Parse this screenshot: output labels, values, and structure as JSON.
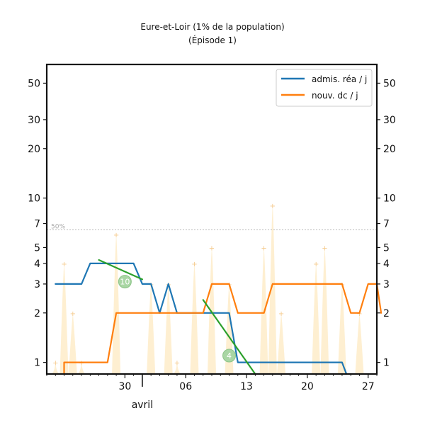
{
  "chart_data": {
    "type": "line",
    "title": "Eure-et-Loir (1% de la population)",
    "subtitle": "(Épisode 1)",
    "xlabel": "",
    "ylabel": "",
    "yscale": "log",
    "ylim": [
      0.85,
      65
    ],
    "xlim": [
      "2020-03-21",
      "2020-04-28"
    ],
    "grid": false,
    "legend_position": "top-right",
    "x_ticks": [
      {
        "date": "2020-03-30",
        "label": "30"
      },
      {
        "date": "2020-04-06",
        "label": "06"
      },
      {
        "date": "2020-04-13",
        "label": "13"
      },
      {
        "date": "2020-04-20",
        "label": "20"
      },
      {
        "date": "2020-04-27",
        "label": "27"
      }
    ],
    "x_month_label": {
      "date": "2020-04-01",
      "label": "avril"
    },
    "y_ticks": [
      {
        "value": 1,
        "label": "1"
      },
      {
        "value": 2,
        "label": "2"
      },
      {
        "value": 3,
        "label": "3"
      },
      {
        "value": 4,
        "label": "4"
      },
      {
        "value": 5,
        "label": "5"
      },
      {
        "value": 7,
        "label": "7"
      },
      {
        "value": 10,
        "label": "10"
      },
      {
        "value": 20,
        "label": "20"
      },
      {
        "value": 30,
        "label": "30"
      },
      {
        "value": 50,
        "label": "50"
      }
    ],
    "reference_line": {
      "value": 6.4,
      "label": "50%",
      "color": "#b0b0b0"
    },
    "series": [
      {
        "name": "admis. réa / j",
        "color": "#1f77b4",
        "points": [
          [
            "2020-03-22",
            3
          ],
          [
            "2020-03-23",
            3
          ],
          [
            "2020-03-24",
            3
          ],
          [
            "2020-03-25",
            3
          ],
          [
            "2020-03-26",
            4
          ],
          [
            "2020-03-27",
            4
          ],
          [
            "2020-03-28",
            4
          ],
          [
            "2020-03-29",
            4
          ],
          [
            "2020-03-30",
            4
          ],
          [
            "2020-03-31",
            4
          ],
          [
            "2020-04-01",
            3
          ],
          [
            "2020-04-02",
            3
          ],
          [
            "2020-04-03",
            2
          ],
          [
            "2020-04-04",
            3
          ],
          [
            "2020-04-05",
            2
          ],
          [
            "2020-04-06",
            2
          ],
          [
            "2020-04-07",
            2
          ],
          [
            "2020-04-08",
            2
          ],
          [
            "2020-04-09",
            2
          ],
          [
            "2020-04-10",
            2
          ],
          [
            "2020-04-11",
            2
          ],
          [
            "2020-04-12",
            1
          ],
          [
            "2020-04-13",
            1
          ],
          [
            "2020-04-14",
            1
          ],
          [
            "2020-04-15",
            1
          ],
          [
            "2020-04-16",
            1
          ],
          [
            "2020-04-17",
            1
          ],
          [
            "2020-04-18",
            1
          ],
          [
            "2020-04-19",
            1
          ],
          [
            "2020-04-20",
            1
          ],
          [
            "2020-04-21",
            1
          ],
          [
            "2020-04-22",
            1
          ],
          [
            "2020-04-23",
            1
          ],
          [
            "2020-04-24",
            1
          ],
          [
            "2020-04-24.5",
            0.85
          ]
        ]
      },
      {
        "name": "nouv. dc / j",
        "color": "#ff7f0e",
        "points": [
          [
            "2020-03-23",
            0.85
          ],
          [
            "2020-03-23",
            1
          ],
          [
            "2020-03-24",
            1
          ],
          [
            "2020-03-25",
            1
          ],
          [
            "2020-03-26",
            1
          ],
          [
            "2020-03-27",
            1
          ],
          [
            "2020-03-28",
            1
          ],
          [
            "2020-03-29",
            2
          ],
          [
            "2020-03-30",
            2
          ],
          [
            "2020-03-31",
            2
          ],
          [
            "2020-04-01",
            2
          ],
          [
            "2020-04-02",
            2
          ],
          [
            "2020-04-03",
            2
          ],
          [
            "2020-04-04",
            2
          ],
          [
            "2020-04-05",
            2
          ],
          [
            "2020-04-06",
            2
          ],
          [
            "2020-04-07",
            2
          ],
          [
            "2020-04-08",
            2
          ],
          [
            "2020-04-09",
            3
          ],
          [
            "2020-04-10",
            3
          ],
          [
            "2020-04-11",
            3
          ],
          [
            "2020-04-12",
            2
          ],
          [
            "2020-04-13",
            2
          ],
          [
            "2020-04-14",
            2
          ],
          [
            "2020-04-15",
            2
          ],
          [
            "2020-04-16",
            3
          ],
          [
            "2020-04-17",
            3
          ],
          [
            "2020-04-18",
            3
          ],
          [
            "2020-04-19",
            3
          ],
          [
            "2020-04-20",
            3
          ],
          [
            "2020-04-21",
            3
          ],
          [
            "2020-04-22",
            3
          ],
          [
            "2020-04-23",
            3
          ],
          [
            "2020-04-24",
            3
          ],
          [
            "2020-04-25",
            2
          ],
          [
            "2020-04-26",
            2
          ],
          [
            "2020-04-27",
            3
          ],
          [
            "2020-04-28",
            3
          ],
          [
            "2020-04-28.5",
            2
          ]
        ]
      }
    ],
    "trend_lines": [
      {
        "label": "10",
        "color": "#2ca02c",
        "points": [
          [
            "2020-03-27",
            4.2
          ],
          [
            "2020-04-01",
            3.2
          ]
        ],
        "badge_at": [
          "2020-03-30",
          3.1
        ]
      },
      {
        "label": "4",
        "color": "#2ca02c",
        "points": [
          [
            "2020-04-08",
            2.4
          ],
          [
            "2020-04-14",
            0.85
          ]
        ],
        "badge_at": [
          "2020-04-11",
          1.1
        ]
      }
    ],
    "daily_spikes": {
      "color": "#fde9c2",
      "values": [
        [
          "2020-03-22",
          1
        ],
        [
          "2020-03-23",
          4
        ],
        [
          "2020-03-24",
          2
        ],
        [
          "2020-03-25",
          1
        ],
        [
          "2020-03-29",
          6
        ],
        [
          "2020-04-02",
          3
        ],
        [
          "2020-04-04",
          3
        ],
        [
          "2020-04-05",
          1
        ],
        [
          "2020-04-07",
          4
        ],
        [
          "2020-04-09",
          5
        ],
        [
          "2020-04-11",
          3
        ],
        [
          "2020-04-15",
          5
        ],
        [
          "2020-04-16",
          9
        ],
        [
          "2020-04-17",
          2
        ],
        [
          "2020-04-21",
          4
        ],
        [
          "2020-04-22",
          5
        ],
        [
          "2020-04-24",
          3
        ],
        [
          "2020-04-26",
          2
        ]
      ]
    }
  }
}
